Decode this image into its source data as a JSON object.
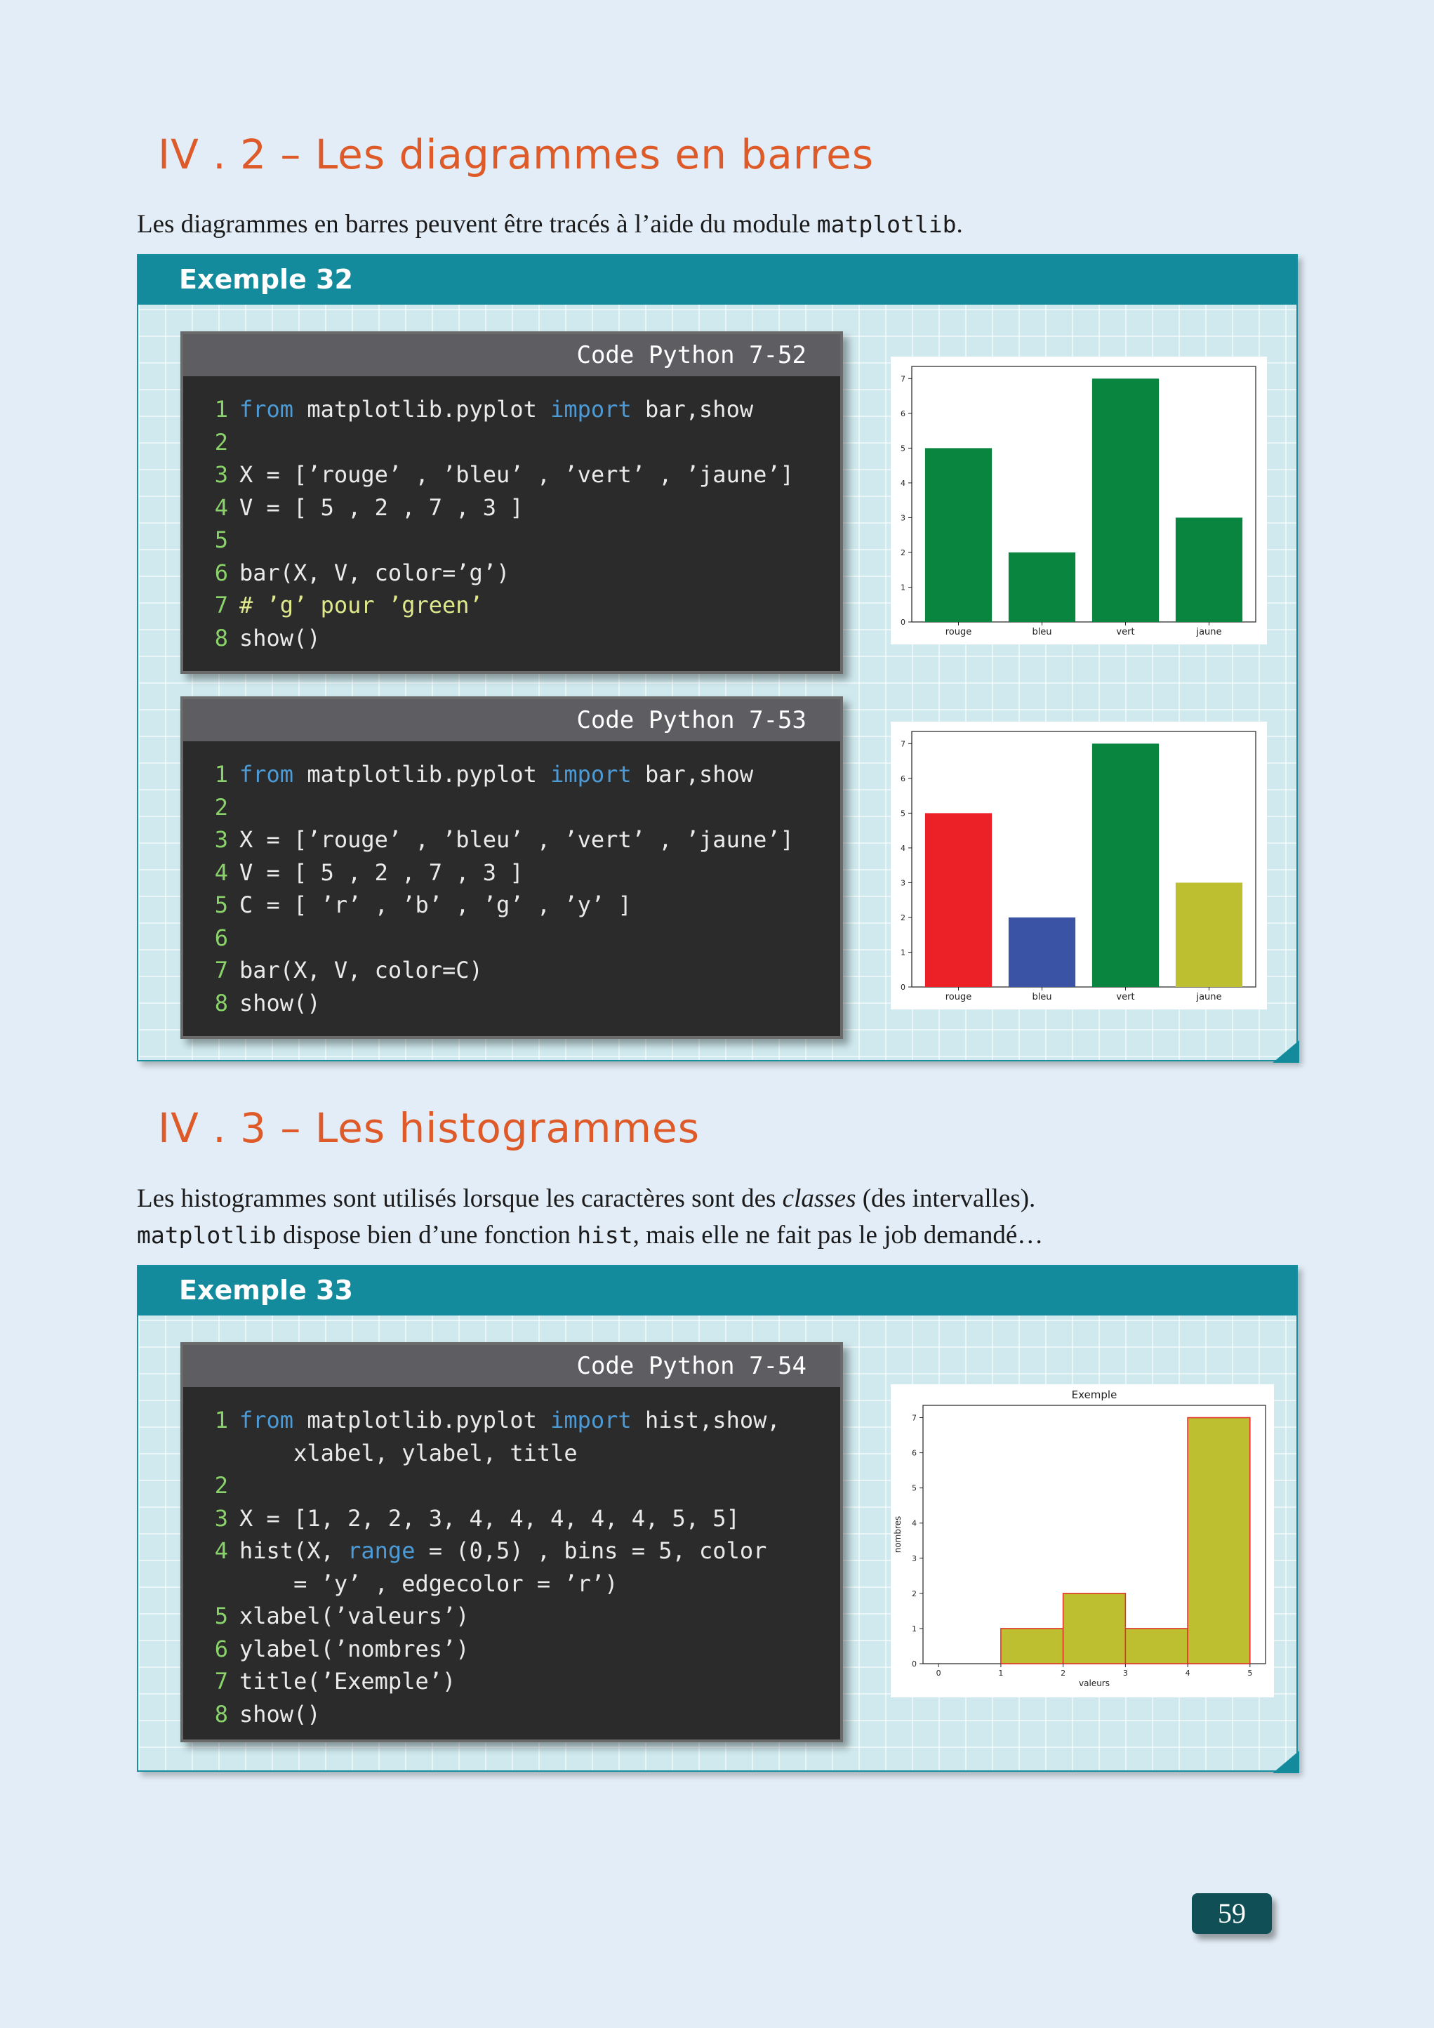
{
  "section_a": {
    "heading": "IV . 2 – Les diagrammes en barres",
    "intro_before": "Les diagrammes en barres peuvent être tracés à l’aide du module ",
    "intro_code": "matplotlib",
    "intro_after": "."
  },
  "example32": {
    "title": "Exemple 32",
    "code1": {
      "header": "Code Python 7-52",
      "lines": [
        {
          "n": "1",
          "segments": [
            {
              "t": "from",
              "c": "kw"
            },
            {
              "t": " matplotlib.pyplot ",
              "c": ""
            },
            {
              "t": "import",
              "c": "kw"
            },
            {
              "t": " bar,show",
              "c": ""
            }
          ]
        },
        {
          "n": "2",
          "segments": []
        },
        {
          "n": "3",
          "segments": [
            {
              "t": "X = [’rouge’ , ’bleu’ , ’vert’ , ’jaune’]",
              "c": ""
            }
          ]
        },
        {
          "n": "4",
          "segments": [
            {
              "t": "V = [ 5 , 2 , 7 , 3 ]",
              "c": ""
            }
          ]
        },
        {
          "n": "5",
          "segments": []
        },
        {
          "n": "6",
          "segments": [
            {
              "t": "bar(X, V, color=’g’)",
              "c": ""
            }
          ]
        },
        {
          "n": "7",
          "segments": [
            {
              "t": "# ’g’ pour ’green’",
              "c": "cm"
            }
          ]
        },
        {
          "n": "8",
          "segments": [
            {
              "t": "show()",
              "c": ""
            }
          ]
        }
      ]
    },
    "code2": {
      "header": "Code Python 7-53",
      "lines": [
        {
          "n": "1",
          "segments": [
            {
              "t": "from",
              "c": "kw"
            },
            {
              "t": " matplotlib.pyplot ",
              "c": ""
            },
            {
              "t": "import",
              "c": "kw"
            },
            {
              "t": " bar,show",
              "c": ""
            }
          ]
        },
        {
          "n": "2",
          "segments": []
        },
        {
          "n": "3",
          "segments": [
            {
              "t": "X = [’rouge’ , ’bleu’ , ’vert’ , ’jaune’]",
              "c": ""
            }
          ]
        },
        {
          "n": "4",
          "segments": [
            {
              "t": "V = [ 5 , 2 , 7 , 3 ]",
              "c": ""
            }
          ]
        },
        {
          "n": "5",
          "segments": [
            {
              "t": "C = [ ’r’ , ’b’ , ’g’ , ’y’ ]",
              "c": ""
            }
          ]
        },
        {
          "n": "6",
          "segments": []
        },
        {
          "n": "7",
          "segments": [
            {
              "t": "bar(X, V, color=C)",
              "c": ""
            }
          ]
        },
        {
          "n": "8",
          "segments": [
            {
              "t": "show()",
              "c": ""
            }
          ]
        }
      ]
    }
  },
  "section_b": {
    "heading": "IV . 3 – Les histogrammes",
    "line1_before": "Les histogrammes sont utilisés lorsque les caractères sont des ",
    "line1_italic": "classes",
    "line1_after": " (des intervalles).",
    "line2_code1": "matplotlib",
    "line2_mid": " dispose bien d’une fonction ",
    "line2_code2": "hist",
    "line2_after": ", mais elle ne fait pas le job demandé…"
  },
  "example33": {
    "title": "Exemple 33",
    "code": {
      "header": "Code Python 7-54",
      "lines": [
        {
          "n": "1",
          "segments": [
            {
              "t": "from",
              "c": "kw"
            },
            {
              "t": " matplotlib.pyplot ",
              "c": ""
            },
            {
              "t": "import",
              "c": "kw"
            },
            {
              "t": " hist,show,",
              "c": ""
            }
          ]
        },
        {
          "n": "",
          "segments": [
            {
              "t": "    xlabel, ylabel, title",
              "c": ""
            }
          ]
        },
        {
          "n": "2",
          "segments": []
        },
        {
          "n": "3",
          "segments": [
            {
              "t": "X = [1, 2, 2, 3, 4, 4, 4, 4, 4, 5, 5]",
              "c": ""
            }
          ]
        },
        {
          "n": "4",
          "segments": [
            {
              "t": "hist(X, ",
              "c": ""
            },
            {
              "t": "range",
              "c": "kw"
            },
            {
              "t": " = (0,5) , bins = 5, color",
              "c": ""
            }
          ]
        },
        {
          "n": "",
          "segments": [
            {
              "t": "    = ’y’ , edgecolor = ’r’)",
              "c": ""
            }
          ]
        },
        {
          "n": "5",
          "segments": [
            {
              "t": "xlabel(’valeurs’)",
              "c": ""
            }
          ]
        },
        {
          "n": "6",
          "segments": [
            {
              "t": "ylabel(’nombres’)",
              "c": ""
            }
          ]
        },
        {
          "n": "7",
          "segments": [
            {
              "t": "title(’Exemple’)",
              "c": ""
            }
          ]
        },
        {
          "n": "8",
          "segments": [
            {
              "t": "show()",
              "c": ""
            }
          ]
        }
      ]
    }
  },
  "chart_data": [
    {
      "type": "bar",
      "categories": [
        "rouge",
        "bleu",
        "vert",
        "jaune"
      ],
      "values": [
        5,
        2,
        7,
        3
      ],
      "colors": [
        "#0a8540",
        "#0a8540",
        "#0a8540",
        "#0a8540"
      ],
      "yticks": [
        "0",
        "1",
        "2",
        "3",
        "4",
        "5",
        "6",
        "7"
      ],
      "ylim": [
        0,
        7.35
      ]
    },
    {
      "type": "bar",
      "categories": [
        "rouge",
        "bleu",
        "vert",
        "jaune"
      ],
      "values": [
        5,
        2,
        7,
        3
      ],
      "colors": [
        "#ec2027",
        "#3b53a5",
        "#0a8540",
        "#bdbf31"
      ],
      "yticks": [
        "0",
        "1",
        "2",
        "3",
        "4",
        "5",
        "6",
        "7"
      ],
      "ylim": [
        0,
        7.35
      ]
    },
    {
      "type": "bar",
      "title": "Exemple",
      "xlabel": "valeurs",
      "ylabel": "nombres",
      "bins": [
        [
          0,
          1
        ],
        [
          1,
          2
        ],
        [
          2,
          3
        ],
        [
          3,
          4
        ],
        [
          4,
          5
        ]
      ],
      "values": [
        0,
        1,
        2,
        1,
        7
      ],
      "fill": "#bdbf31",
      "edge": "#e2342a",
      "xticks": [
        "0",
        "1",
        "2",
        "3",
        "4",
        "5"
      ],
      "yticks": [
        "0",
        "1",
        "2",
        "3",
        "4",
        "5",
        "6",
        "7"
      ],
      "xlim": [
        -0.25,
        5.25
      ],
      "ylim": [
        0,
        7.35
      ]
    }
  ],
  "page_number": "59"
}
